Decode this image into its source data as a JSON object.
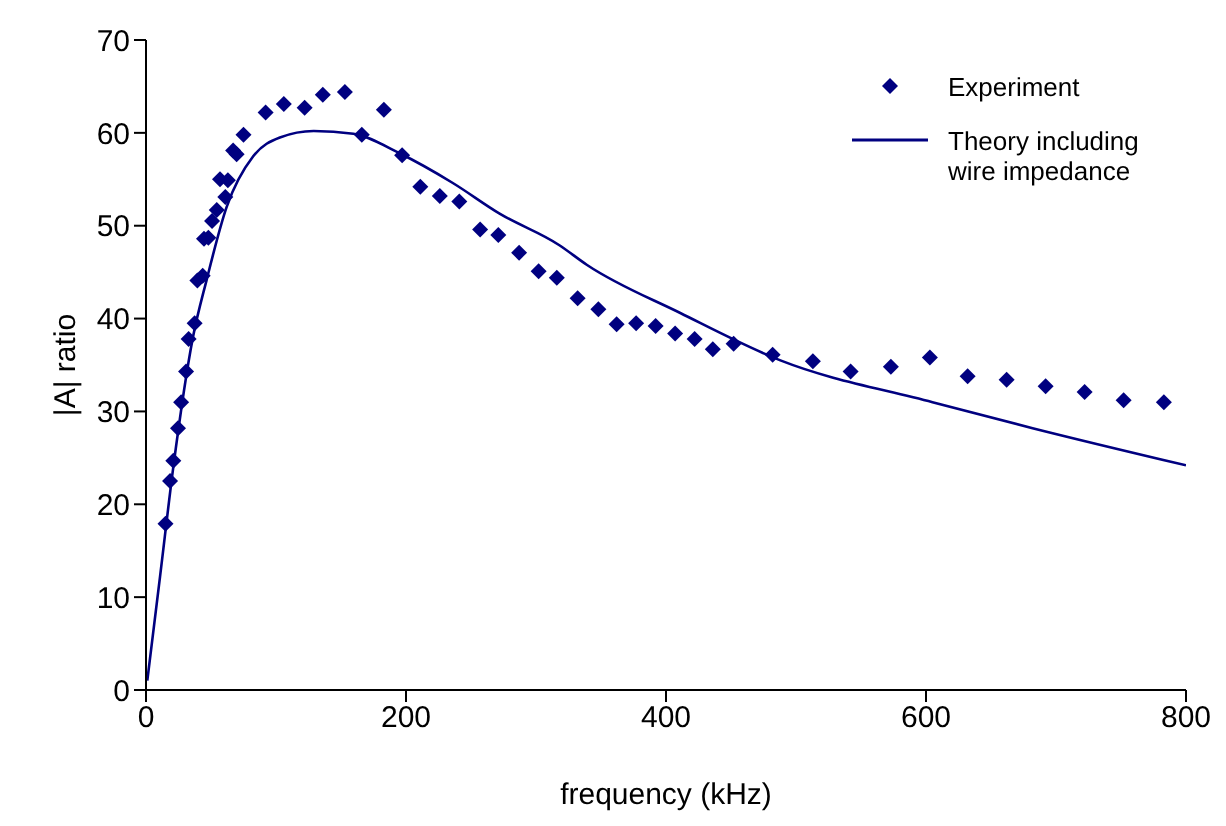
{
  "chart_data": {
    "type": "scatter",
    "xlabel": "frequency (kHz)",
    "ylabel": "|A| ratio",
    "xlim": [
      0,
      800
    ],
    "xticks": [
      0,
      200,
      400,
      600,
      800
    ],
    "ylim": [
      0,
      70
    ],
    "yticks": [
      0,
      10,
      20,
      30,
      40,
      50,
      60,
      70
    ],
    "grid": false,
    "legend": "top right",
    "marker": "diamond",
    "series": [
      {
        "name": "Experiment",
        "color": "#000080",
        "x": [
          15,
          18.5,
          21,
          24.6,
          27,
          30.8,
          32.8,
          37.4,
          39.5,
          43.6,
          44.6,
          48,
          50.8,
          54.4,
          56.9,
          61,
          63,
          67,
          69.7,
          75,
          92,
          106,
          122,
          136,
          153,
          166,
          183,
          197,
          211,
          226,
          241,
          257,
          271,
          287,
          302,
          316,
          332,
          348,
          362,
          377,
          392,
          407,
          422,
          436,
          452,
          482,
          513,
          542,
          573,
          603,
          632,
          662,
          692,
          722,
          752,
          783
        ],
        "values": [
          17.9,
          22.5,
          24.7,
          28.2,
          31,
          34.3,
          37.8,
          39.5,
          44.1,
          44.6,
          48.6,
          48.7,
          50.5,
          51.7,
          55,
          53.1,
          54.9,
          58.1,
          57.7,
          59.8,
          62.2,
          63.1,
          62.7,
          64.1,
          64.4,
          59.8,
          62.5,
          57.6,
          54.2,
          53.2,
          52.6,
          49.6,
          49,
          47.1,
          45.1,
          44.4,
          42.2,
          41,
          39.4,
          39.5,
          39.2,
          38.4,
          37.8,
          36.7,
          37.3,
          36.1,
          35.4,
          34.3,
          34.8,
          35.8,
          33.8,
          33.4,
          32.7,
          32.1,
          31.2,
          31
        ]
      },
      {
        "name": "Theory including wire impedance",
        "type": "line",
        "color": "#000080",
        "marker": "none",
        "line_style": "solid",
        "x": [
          1,
          10.8,
          21,
          36,
          46.7,
          62,
          82.6,
          103,
          129,
          159.5,
          195,
          236,
          272,
          318,
          339,
          411,
          488,
          605,
          682,
          800
        ],
        "values": [
          1,
          12.2,
          24,
          37.9,
          44.2,
          52,
          57.5,
          59.5,
          60.2,
          59.9,
          57.8,
          54.6,
          51.3,
          47.9,
          45.8,
          40.6,
          35.5,
          31,
          28.2,
          24.2
        ]
      }
    ]
  }
}
